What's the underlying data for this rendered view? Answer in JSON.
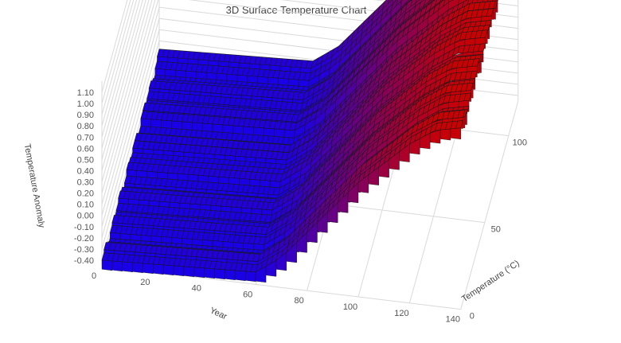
{
  "chart_data": {
    "type": "surface-3d",
    "title": "3D Surface Temperature Chart",
    "x_axis": {
      "label": "Year",
      "ticks": [
        0,
        20,
        40,
        60,
        80,
        100,
        120,
        140
      ],
      "range": [
        0,
        140
      ]
    },
    "y_axis": {
      "label": "Temperature (°C)",
      "ticks": [
        0,
        50,
        100
      ],
      "range": [
        0,
        120
      ]
    },
    "z_axis": {
      "label": "Temperature Anomaly",
      "ticks": [
        "-0.40",
        "-0.30",
        "-0.20",
        "-0.10",
        "0.00",
        "0.10",
        "0.20",
        "0.30",
        "0.40",
        "0.50",
        "0.60",
        "0.70",
        "0.80",
        "0.90",
        "1.00",
        "1.10"
      ],
      "range": [
        -0.45,
        1.2
      ]
    },
    "colorscale": [
      "#1a00e6",
      "#cc0000"
    ],
    "grid": true,
    "profile": {
      "x": [
        0,
        20,
        40,
        60,
        70,
        80,
        90,
        100,
        110,
        120,
        130,
        140
      ],
      "z": [
        -0.42,
        -0.4,
        -0.38,
        -0.36,
        -0.2,
        0.05,
        0.3,
        0.55,
        0.75,
        0.95,
        1.1,
        1.15
      ]
    }
  }
}
